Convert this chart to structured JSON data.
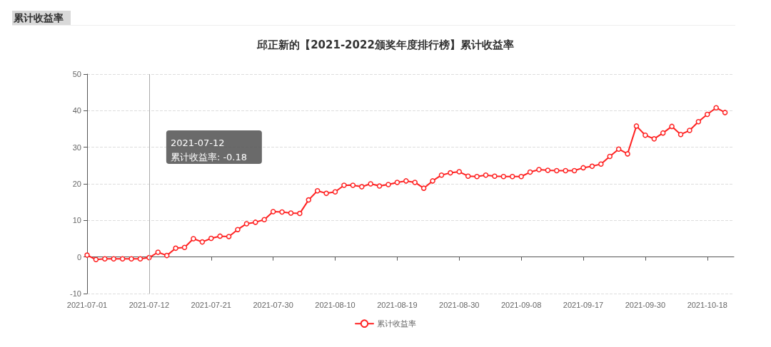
{
  "chart_data": {
    "type": "line",
    "title": "邱正新的【2021-2022颁奖年度排行榜】累计收益率",
    "categories": [
      "2021-07-01",
      null,
      null,
      null,
      null,
      null,
      null,
      "2021-07-12",
      null,
      null,
      null,
      null,
      null,
      null,
      "2021-07-21",
      null,
      null,
      null,
      null,
      null,
      null,
      "2021-07-30",
      null,
      null,
      null,
      null,
      null,
      null,
      "2021-08-10",
      null,
      null,
      null,
      null,
      null,
      null,
      "2021-08-19",
      null,
      null,
      null,
      null,
      null,
      null,
      "2021-08-30",
      null,
      null,
      null,
      null,
      null,
      null,
      "2021-09-08",
      null,
      null,
      null,
      null,
      null,
      null,
      "2021-09-17",
      null,
      null,
      null,
      null,
      null,
      null,
      "2021-09-30",
      null,
      null,
      null,
      null,
      null,
      null,
      "2021-10-18",
      null,
      null
    ],
    "series": [
      {
        "name": "累计收益率",
        "color": "#ff2222",
        "values": [
          0.5,
          -0.7,
          -0.5,
          -0.5,
          -0.5,
          -0.5,
          -0.5,
          -0.18,
          1.3,
          0.4,
          2.4,
          2.6,
          5.0,
          4.1,
          5.1,
          5.7,
          5.6,
          7.5,
          9.1,
          9.5,
          10.2,
          12.4,
          12.3,
          12.0,
          11.9,
          15.6,
          18.1,
          17.4,
          17.8,
          19.6,
          19.6,
          19.2,
          20.0,
          19.4,
          19.8,
          20.4,
          20.8,
          20.4,
          18.8,
          20.8,
          22.4,
          23.0,
          23.3,
          22.1,
          22.0,
          22.4,
          22.1,
          22.0,
          22.0,
          22.0,
          23.2,
          23.9,
          23.7,
          23.6,
          23.6,
          23.6,
          24.4,
          24.8,
          25.4,
          27.5,
          29.5,
          28.2,
          35.8,
          33.3,
          32.3,
          33.9,
          35.7,
          33.5,
          34.6,
          37.0,
          39.0,
          40.8,
          39.5
        ]
      }
    ],
    "ylim": [
      -10,
      50
    ],
    "yticks": [
      -10,
      0,
      10,
      20,
      30,
      40,
      50
    ],
    "grid": "y",
    "legend": "bottom",
    "marker": "circle",
    "line_style": "solid",
    "ref_lines": [
      {
        "axis": "x",
        "value": "2021-07-12",
        "color": "#aaaaaa"
      }
    ],
    "annotations": [
      "累计收益率",
      "2021-07-12\n累计收益率: -0.18"
    ]
  }
}
